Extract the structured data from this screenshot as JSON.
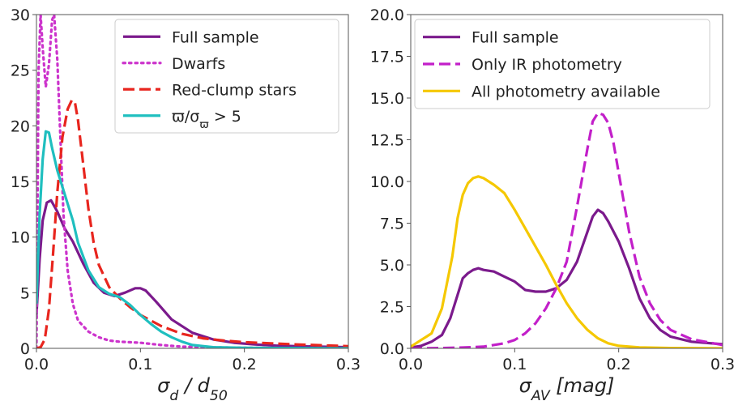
{
  "chart_data": [
    {
      "type": "line",
      "xlabel": "σ_d / d_50",
      "ylabel": "",
      "xlim": [
        0,
        0.3
      ],
      "ylim": [
        0,
        30
      ],
      "xticks": [
        "0.0",
        "0.1",
        "0.2",
        "0.3"
      ],
      "yticks": [
        "0",
        "5",
        "10",
        "15",
        "20",
        "25",
        "30"
      ],
      "grid": false,
      "legend_position": "top-right",
      "series": [
        {
          "name": "Full sample",
          "color": "#7b1a8c",
          "dash": "solid",
          "x": [
            0,
            0.003,
            0.006,
            0.01,
            0.014,
            0.02,
            0.027,
            0.035,
            0.045,
            0.055,
            0.065,
            0.075,
            0.085,
            0.095,
            0.1,
            0.105,
            0.115,
            0.13,
            0.15,
            0.17,
            0.19,
            0.21,
            0.23,
            0.25,
            0.27,
            0.3
          ],
          "y": [
            3.0,
            8.0,
            11.5,
            13.1,
            13.3,
            12.3,
            10.8,
            9.6,
            7.6,
            5.9,
            5.0,
            4.7,
            5.0,
            5.4,
            5.4,
            5.2,
            4.2,
            2.6,
            1.4,
            0.8,
            0.5,
            0.35,
            0.25,
            0.2,
            0.15,
            0.1
          ]
        },
        {
          "name": "Dwarfs",
          "color": "#cc33cc",
          "dash": "dotted",
          "x": [
            0,
            0.002,
            0.004,
            0.006,
            0.009,
            0.012,
            0.015,
            0.017,
            0.02,
            0.023,
            0.026,
            0.03,
            0.035,
            0.04,
            0.05,
            0.06,
            0.07,
            0.08,
            0.1,
            0.12,
            0.14,
            0.16,
            0.2,
            0.3
          ],
          "y": [
            0,
            25,
            30,
            27,
            23.5,
            25.5,
            29.5,
            30,
            26,
            19,
            12,
            7,
            4,
            2.5,
            1.5,
            1.0,
            0.7,
            0.6,
            0.5,
            0.3,
            0.15,
            0.1,
            0.05,
            0
          ]
        },
        {
          "name": "Red-clump stars",
          "color": "#e8251e",
          "dash": "dashed",
          "x": [
            0,
            0.004,
            0.008,
            0.012,
            0.016,
            0.02,
            0.025,
            0.03,
            0.034,
            0.037,
            0.04,
            0.045,
            0.05,
            0.055,
            0.06,
            0.07,
            0.08,
            0.09,
            0.1,
            0.12,
            0.14,
            0.16,
            0.18,
            0.2,
            0.25,
            0.3
          ],
          "y": [
            0,
            0.1,
            0.8,
            3.5,
            8.5,
            14,
            19,
            21.5,
            22.3,
            22.1,
            20.5,
            16.5,
            12.5,
            9.5,
            7.5,
            5.5,
            4.5,
            3.7,
            3.0,
            2.0,
            1.3,
            0.9,
            0.7,
            0.55,
            0.35,
            0.2
          ]
        },
        {
          "name": "ϖ/σ_ϖ > 5",
          "color": "#1fbfbf",
          "dash": "solid",
          "x": [
            0,
            0.003,
            0.006,
            0.009,
            0.012,
            0.015,
            0.02,
            0.025,
            0.03,
            0.035,
            0.04,
            0.05,
            0.06,
            0.07,
            0.08,
            0.09,
            0.1,
            0.11,
            0.12,
            0.13,
            0.14,
            0.15,
            0.17,
            0.2,
            0.3
          ],
          "y": [
            4,
            12,
            17,
            19.5,
            19.4,
            18.0,
            16.0,
            14.5,
            13.0,
            11.5,
            9.5,
            7.0,
            5.5,
            4.9,
            4.6,
            3.9,
            3.0,
            2.2,
            1.5,
            1.0,
            0.6,
            0.3,
            0.1,
            0.05,
            0
          ]
        }
      ]
    },
    {
      "type": "line",
      "xlabel": "σ_AV [mag]",
      "ylabel": "",
      "xlim": [
        0,
        0.3
      ],
      "ylim": [
        0,
        20
      ],
      "xticks": [
        "0.0",
        "0.1",
        "0.2",
        "0.3"
      ],
      "yticks": [
        "0.0",
        "2.5",
        "5.0",
        "7.5",
        "10.0",
        "12.5",
        "15.0",
        "17.5",
        "20.0"
      ],
      "grid": false,
      "legend_position": "top-left",
      "series": [
        {
          "name": "Full sample",
          "color": "#7b1a8c",
          "dash": "solid",
          "x": [
            0,
            0.01,
            0.02,
            0.03,
            0.038,
            0.045,
            0.05,
            0.055,
            0.06,
            0.065,
            0.07,
            0.08,
            0.09,
            0.1,
            0.11,
            0.12,
            0.13,
            0.14,
            0.15,
            0.16,
            0.17,
            0.175,
            0.18,
            0.185,
            0.19,
            0.2,
            0.21,
            0.22,
            0.23,
            0.24,
            0.25,
            0.27,
            0.3
          ],
          "y": [
            0.05,
            0.15,
            0.4,
            0.8,
            1.8,
            3.2,
            4.2,
            4.5,
            4.7,
            4.8,
            4.7,
            4.6,
            4.3,
            4.0,
            3.5,
            3.4,
            3.4,
            3.6,
            4.1,
            5.2,
            7.0,
            7.9,
            8.3,
            8.1,
            7.6,
            6.4,
            4.8,
            3.0,
            1.8,
            1.1,
            0.7,
            0.4,
            0.25
          ]
        },
        {
          "name": "Only IR photometry",
          "color": "#c21fc9",
          "dash": "dashed",
          "x": [
            0,
            0.03,
            0.05,
            0.07,
            0.09,
            0.1,
            0.11,
            0.12,
            0.13,
            0.14,
            0.15,
            0.16,
            0.17,
            0.175,
            0.18,
            0.185,
            0.19,
            0.195,
            0.2,
            0.21,
            0.22,
            0.23,
            0.24,
            0.25,
            0.27,
            0.3
          ],
          "y": [
            0,
            0.02,
            0.05,
            0.1,
            0.3,
            0.5,
            0.9,
            1.5,
            2.4,
            3.6,
            5.2,
            8.5,
            12.0,
            13.6,
            14.1,
            14.0,
            13.5,
            12.3,
            10.5,
            7.0,
            4.3,
            2.7,
            1.7,
            1.1,
            0.55,
            0.2
          ]
        },
        {
          "name": "All photometry available",
          "color": "#f5c800",
          "dash": "solid",
          "x": [
            0,
            0.005,
            0.01,
            0.015,
            0.02,
            0.03,
            0.04,
            0.045,
            0.05,
            0.055,
            0.06,
            0.065,
            0.07,
            0.08,
            0.09,
            0.1,
            0.11,
            0.12,
            0.13,
            0.14,
            0.15,
            0.16,
            0.17,
            0.18,
            0.19,
            0.2,
            0.22,
            0.25,
            0.3
          ],
          "y": [
            0.1,
            0.3,
            0.5,
            0.7,
            0.9,
            2.4,
            5.5,
            7.8,
            9.2,
            9.9,
            10.2,
            10.3,
            10.2,
            9.8,
            9.3,
            8.3,
            7.2,
            6.1,
            5.0,
            3.8,
            2.7,
            1.8,
            1.1,
            0.6,
            0.3,
            0.15,
            0.06,
            0.02,
            0
          ]
        }
      ]
    }
  ]
}
